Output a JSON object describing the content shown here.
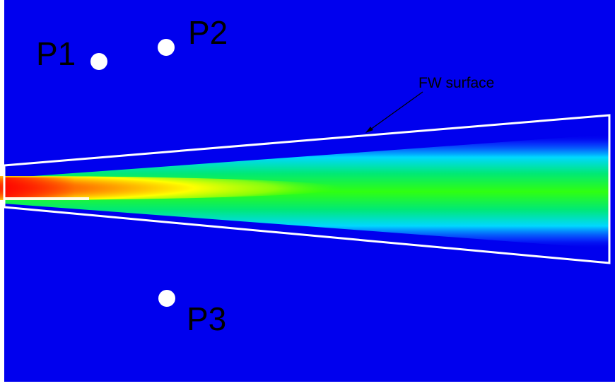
{
  "colors": {
    "background": "#0000ee",
    "frame": "#ffffff",
    "surface_outline": "#ffffff",
    "probe_marker": "#ffffff",
    "text": "#000000",
    "jet_core": "#ff0000",
    "jet_mid": "#00ff00",
    "jet_edge": "#00c8ff"
  },
  "probes": [
    {
      "label": "P1"
    },
    {
      "label": "P2"
    },
    {
      "label": "P3"
    }
  ],
  "surface": {
    "label": "FW surface"
  }
}
